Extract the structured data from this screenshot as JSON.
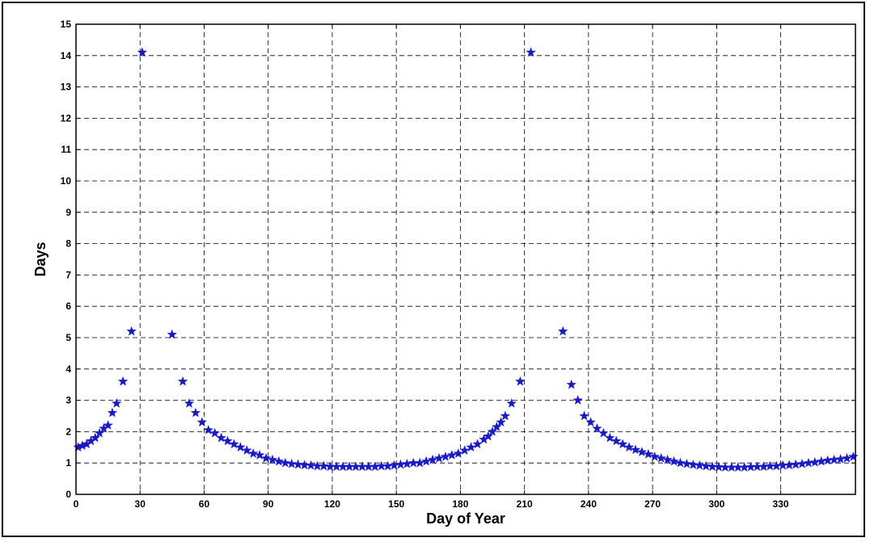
{
  "chart_data": {
    "type": "scatter",
    "title": "",
    "xlabel": "Day of Year",
    "ylabel": "Days",
    "xlim": [
      0,
      365
    ],
    "ylim": [
      0,
      15
    ],
    "xticks": [
      "0",
      "30",
      "60",
      "90",
      "120",
      "150",
      "180",
      "210",
      "240",
      "270",
      "300",
      "330"
    ],
    "yticks": [
      "0",
      "1",
      "2",
      "3",
      "4",
      "5",
      "6",
      "7",
      "8",
      "9",
      "10",
      "11",
      "12",
      "13",
      "14",
      "15"
    ],
    "grid": true,
    "marker": "star",
    "color": "#1a1acc",
    "series": [
      {
        "x": [
          1,
          3,
          5,
          7,
          9,
          11,
          13,
          15,
          17,
          19,
          22,
          26,
          31,
          45,
          50,
          53,
          56,
          59,
          62,
          65,
          68,
          71,
          74,
          77,
          80,
          83,
          86,
          89,
          92,
          95,
          98,
          101,
          104,
          107,
          110,
          113,
          116,
          119,
          122,
          125,
          128,
          131,
          134,
          137,
          140,
          143,
          146,
          149,
          152,
          155,
          158,
          161,
          164,
          167,
          170,
          173,
          176,
          179,
          182,
          185,
          188,
          191,
          193,
          195,
          197,
          199,
          201,
          204,
          208,
          213,
          228,
          232,
          235,
          238,
          241,
          244,
          247,
          250,
          253,
          256,
          259,
          262,
          265,
          268,
          271,
          274,
          277,
          280,
          283,
          286,
          289,
          292,
          295,
          298,
          301,
          304,
          307,
          310,
          313,
          316,
          319,
          322,
          325,
          328,
          331,
          334,
          337,
          340,
          343,
          346,
          349,
          352,
          355,
          358,
          361,
          364
        ],
        "y": [
          1.5,
          1.55,
          1.6,
          1.7,
          1.8,
          1.95,
          2.1,
          2.2,
          2.6,
          2.9,
          3.6,
          5.2,
          14.1,
          5.1,
          3.6,
          2.9,
          2.6,
          2.3,
          2.05,
          1.95,
          1.8,
          1.7,
          1.6,
          1.5,
          1.4,
          1.3,
          1.25,
          1.15,
          1.1,
          1.05,
          1.0,
          0.97,
          0.95,
          0.93,
          0.92,
          0.9,
          0.9,
          0.88,
          0.88,
          0.88,
          0.88,
          0.88,
          0.88,
          0.88,
          0.88,
          0.9,
          0.9,
          0.92,
          0.95,
          0.97,
          1.0,
          1.0,
          1.05,
          1.1,
          1.15,
          1.2,
          1.25,
          1.3,
          1.4,
          1.5,
          1.6,
          1.75,
          1.85,
          2.0,
          2.15,
          2.3,
          2.5,
          2.9,
          3.6,
          14.1,
          5.2,
          3.5,
          3.0,
          2.5,
          2.3,
          2.1,
          1.95,
          1.8,
          1.7,
          1.6,
          1.5,
          1.42,
          1.35,
          1.28,
          1.2,
          1.15,
          1.1,
          1.05,
          1.0,
          0.97,
          0.94,
          0.92,
          0.9,
          0.88,
          0.87,
          0.86,
          0.86,
          0.86,
          0.86,
          0.87,
          0.88,
          0.88,
          0.9,
          0.9,
          0.92,
          0.93,
          0.95,
          0.97,
          1.0,
          1.02,
          1.05,
          1.08,
          1.1,
          1.12,
          1.15,
          1.2
        ]
      }
    ]
  }
}
